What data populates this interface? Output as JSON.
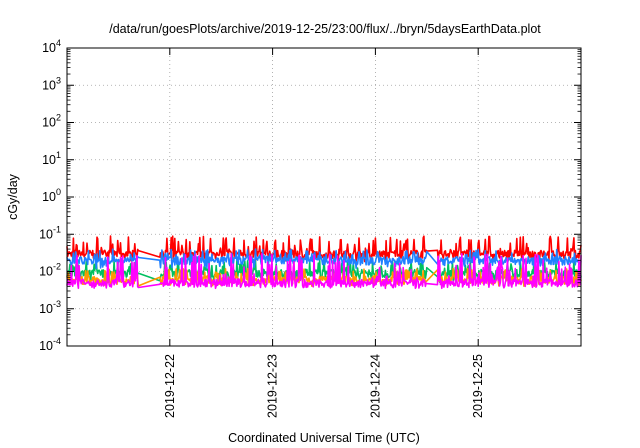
{
  "chart_data": {
    "type": "line",
    "title": "/data/run/goesPlots/archive/2019-12-25/23:00/flux/../bryn/5daysEarthData.plot",
    "xlabel": "Coordinated Universal Time (UTC)",
    "ylabel": "cGy/day",
    "x_range": [
      "2019-12-21 00:00",
      "2019-12-26 00:00"
    ],
    "x_ticks": [
      "2019-12-22",
      "2019-12-23",
      "2019-12-24",
      "2019-12-25"
    ],
    "y_scale": "log",
    "y_range": [
      0.0001,
      10000
    ],
    "y_ticks": [
      {
        "base": "10",
        "exp": "-4"
      },
      {
        "base": "10",
        "exp": "-3"
      },
      {
        "base": "10",
        "exp": "-2"
      },
      {
        "base": "10",
        "exp": "-1"
      },
      {
        "base": "10",
        "exp": "0"
      },
      {
        "base": "10",
        "exp": "1"
      },
      {
        "base": "10",
        "exp": "2"
      },
      {
        "base": "10",
        "exp": "3"
      },
      {
        "base": "10",
        "exp": "4"
      }
    ],
    "grid": true,
    "legend": "none",
    "data_gaps": [
      [
        "2019-12-21 16:48",
        "2019-12-21 21:36"
      ],
      [
        "2019-12-24 12:00",
        "2019-12-24 14:24"
      ]
    ],
    "series": [
      {
        "color": "#ff0000",
        "baseline": 0.03,
        "spike_max": 0.09,
        "spike_min": 0.018
      },
      {
        "color": "#00c060",
        "baseline": 0.009,
        "spike_max": 0.02,
        "spike_min": 0.005
      },
      {
        "color": "#ff9900",
        "baseline": 0.006,
        "spike_max": 0.012,
        "spike_min": 0.004
      },
      {
        "color": "#2080ff",
        "baseline": 0.02,
        "spike_max": 0.04,
        "spike_min": 0.012
      },
      {
        "color": "#ff00ff",
        "baseline": 0.005,
        "spike_max": 0.03,
        "spike_min": 0.0035
      }
    ]
  }
}
